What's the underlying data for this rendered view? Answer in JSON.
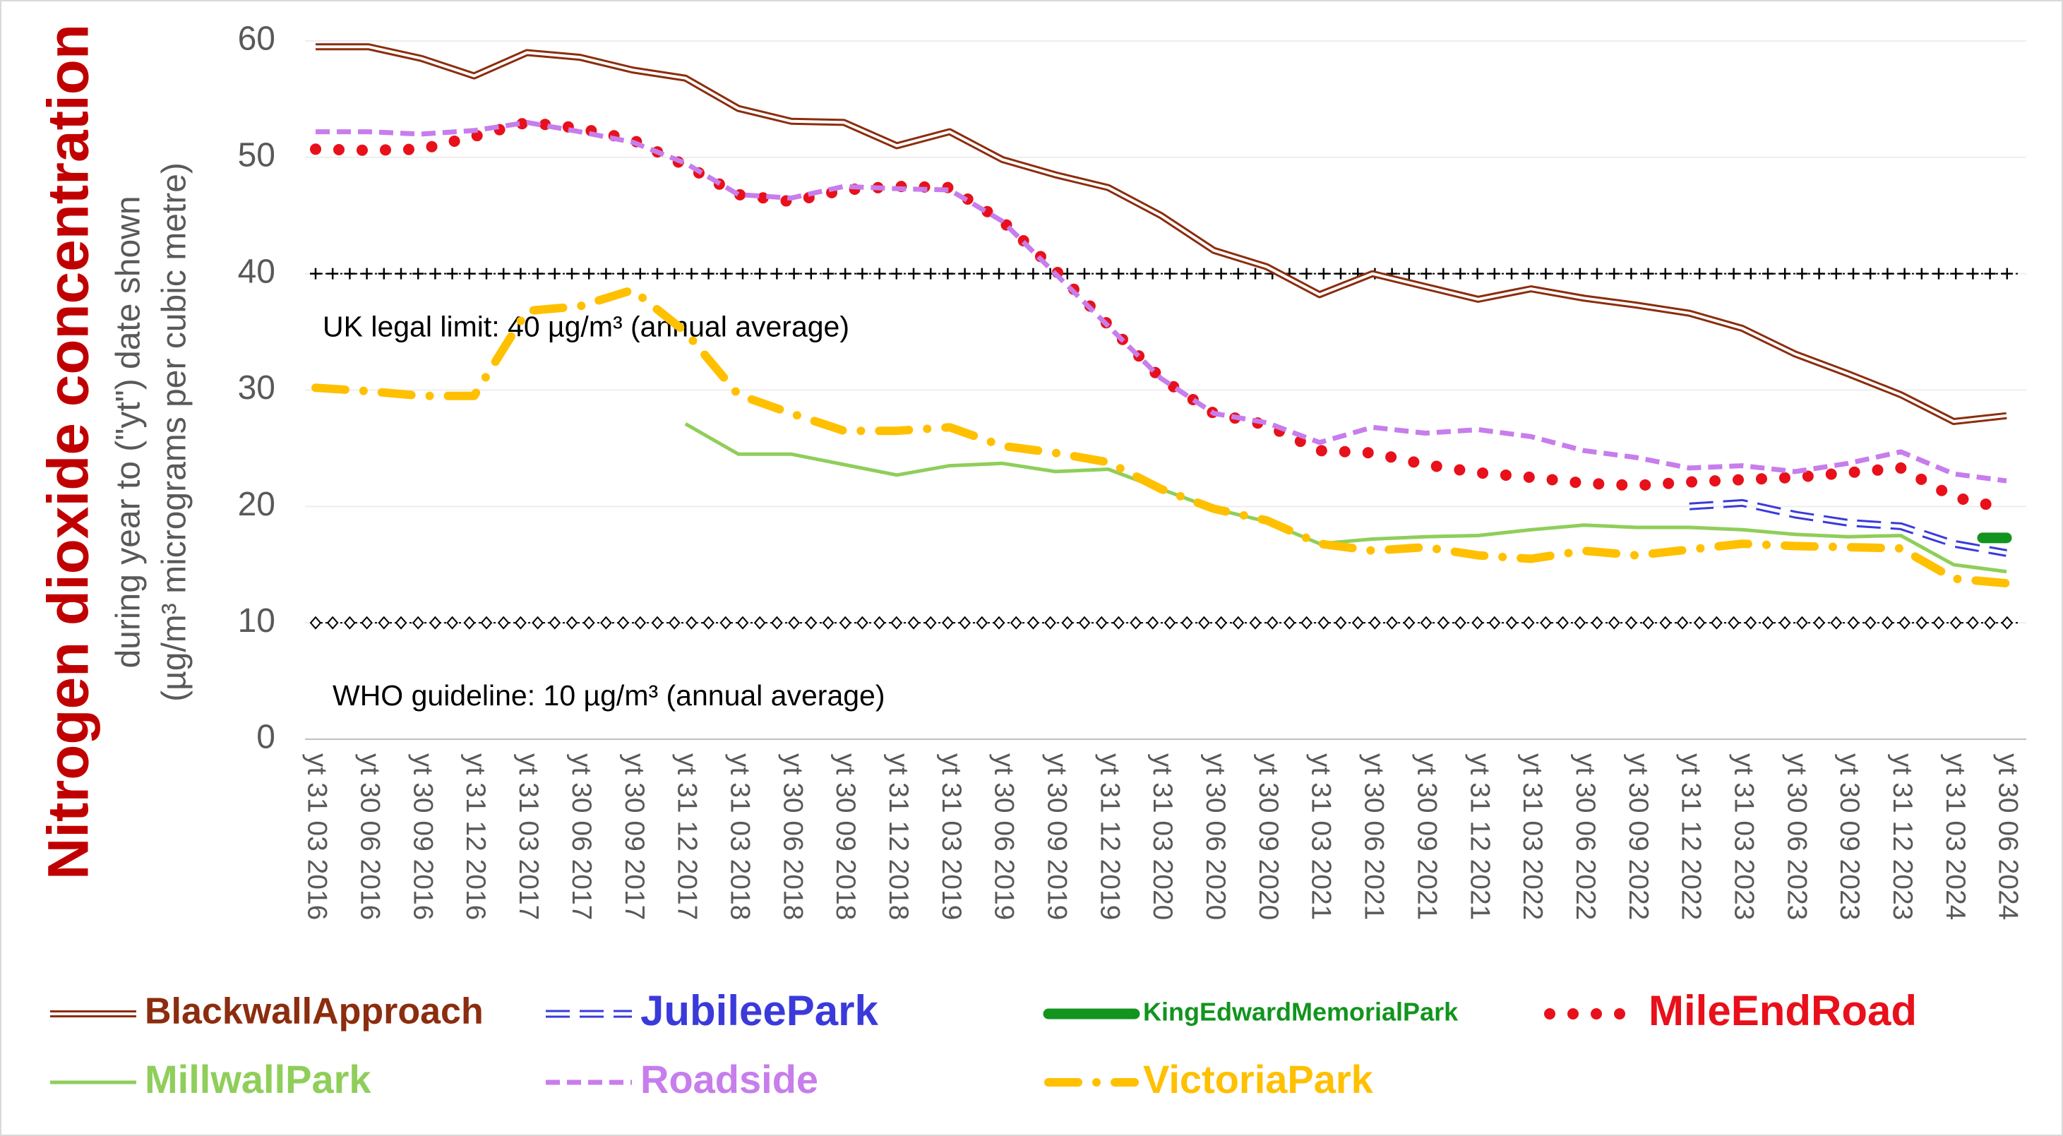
{
  "chart_data": {
    "type": "line",
    "y_label": "Nitrogen dioxide concentration",
    "y_sublabel": [
      "during year to (\"yt\") date shown",
      "(µg/m³ micrograms per cubic metre)"
    ],
    "categories": [
      "yt 31 03 2016",
      "yt 30 06 2016",
      "yt 30 09 2016",
      "yt 31 12 2016",
      "yt 31 03 2017",
      "yt 30 06 2017",
      "yt 30 09 2017",
      "yt 31 12 2017",
      "yt 31 03 2018",
      "yt 30 06 2018",
      "yt 30 09 2018",
      "yt 31 12 2018",
      "yt 31 03 2019",
      "yt 30 06 2019",
      "yt 30 09 2019",
      "yt 31 12 2019",
      "yt 31 03 2020",
      "yt 30 06 2020",
      "yt 30 09 2020",
      "yt 31 03 2021",
      "yt 30 06 2021",
      "yt 30 09 2021",
      "yt 31 12 2021",
      "yt 31 03 2022",
      "yt 30 06 2022",
      "yt 30 09 2022",
      "yt 31 12 2022",
      "yt 31 03 2023",
      "yt 30 06 2023",
      "yt 30 09 2023",
      "yt 31 12 2023",
      "yt 31 03 2024",
      "yt 30 06 2024"
    ],
    "series": [
      {
        "name": "BlackwallApproach",
        "color": "#8b2d0e",
        "line_style": "double",
        "values": [
          59.5,
          59.5,
          58.5,
          57,
          59,
          58.6,
          57.5,
          56.8,
          54.2,
          53.1,
          53,
          51,
          52.2,
          49.8,
          48.5,
          47.4,
          45,
          42,
          40.6,
          38.2,
          40,
          38.9,
          37.8,
          38.7,
          37.9,
          37.3,
          36.6,
          35.3,
          33.1,
          31.4,
          29.6,
          27.3,
          27.8
        ]
      },
      {
        "name": "JubileePark",
        "color": "#3a3adb",
        "line_style": "double-dashed",
        "values": [
          null,
          null,
          null,
          null,
          null,
          null,
          null,
          null,
          null,
          null,
          null,
          null,
          null,
          null,
          null,
          null,
          null,
          null,
          null,
          null,
          null,
          null,
          null,
          null,
          null,
          null,
          20,
          20.3,
          19.3,
          18.6,
          18.3,
          16.8,
          16
        ]
      },
      {
        "name": "KingEdwardMemorialPark",
        "color": "#12941e",
        "line_style": "thick",
        "values": [
          null,
          null,
          null,
          null,
          null,
          null,
          null,
          null,
          null,
          null,
          null,
          null,
          null,
          null,
          null,
          null,
          null,
          null,
          null,
          null,
          null,
          null,
          null,
          null,
          null,
          null,
          null,
          null,
          null,
          null,
          null,
          null,
          17.3
        ]
      },
      {
        "name": "MileEndRoad",
        "color": "#e8101a",
        "line_style": "dotted",
        "values": [
          50.7,
          50.6,
          50.7,
          51.8,
          53,
          52.5,
          51.5,
          49.3,
          46.8,
          46.2,
          47.2,
          47.5,
          47.4,
          44.5,
          40.3,
          35.6,
          31,
          28,
          27,
          24.8,
          24.6,
          23.6,
          22.9,
          22.5,
          22,
          21.8,
          22.1,
          22.3,
          22.5,
          22.9,
          23.3,
          20.8,
          19.8
        ]
      },
      {
        "name": "MillwallPark",
        "color": "#8fce5a",
        "line_style": "solid",
        "values": [
          null,
          null,
          null,
          null,
          null,
          null,
          null,
          27.1,
          24.5,
          24.5,
          23.6,
          22.7,
          23.5,
          23.7,
          23,
          23.2,
          21.5,
          19.8,
          18.7,
          16.8,
          17.2,
          17.4,
          17.5,
          18,
          18.4,
          18.2,
          18.2,
          18,
          17.6,
          17.4,
          17.5,
          15,
          14.4
        ]
      },
      {
        "name": "Roadside",
        "color": "#c77dec",
        "line_style": "dashed",
        "values": [
          52.2,
          52.2,
          52,
          52.3,
          53,
          52.2,
          51.3,
          49.5,
          46.8,
          46.5,
          47.5,
          47.3,
          47.2,
          44.5,
          40,
          35.5,
          31,
          28,
          27.2,
          25.5,
          26.8,
          26.3,
          26.6,
          26,
          24.8,
          24.2,
          23.3,
          23.5,
          23,
          23.7,
          24.7,
          22.8,
          22.2
        ]
      },
      {
        "name": "VictoriaPark",
        "color": "#ffc000",
        "line_style": "dash-dot",
        "values": [
          30.2,
          29.9,
          29.5,
          29.5,
          36.8,
          37.2,
          38.6,
          35,
          29.6,
          28,
          26.5,
          26.5,
          26.8,
          25.2,
          24.6,
          23.8,
          21.5,
          19.8,
          18.8,
          16.8,
          16.2,
          16.5,
          15.8,
          15.5,
          16.2,
          15.8,
          16.3,
          16.8,
          16.6,
          16.5,
          16.4,
          13.8,
          13.4
        ]
      }
    ],
    "reference_lines": [
      {
        "value": 40,
        "label": "UK legal limit:  40 µg/m³ (annual average)",
        "marker": "plus"
      },
      {
        "value": 10,
        "label": "WHO guideline:  10 µg/m³ (annual average)",
        "marker": "diamond"
      }
    ],
    "ylim": [
      0,
      60
    ],
    "yticks": [
      0,
      10,
      20,
      30,
      40,
      50,
      60
    ],
    "grid": true
  }
}
